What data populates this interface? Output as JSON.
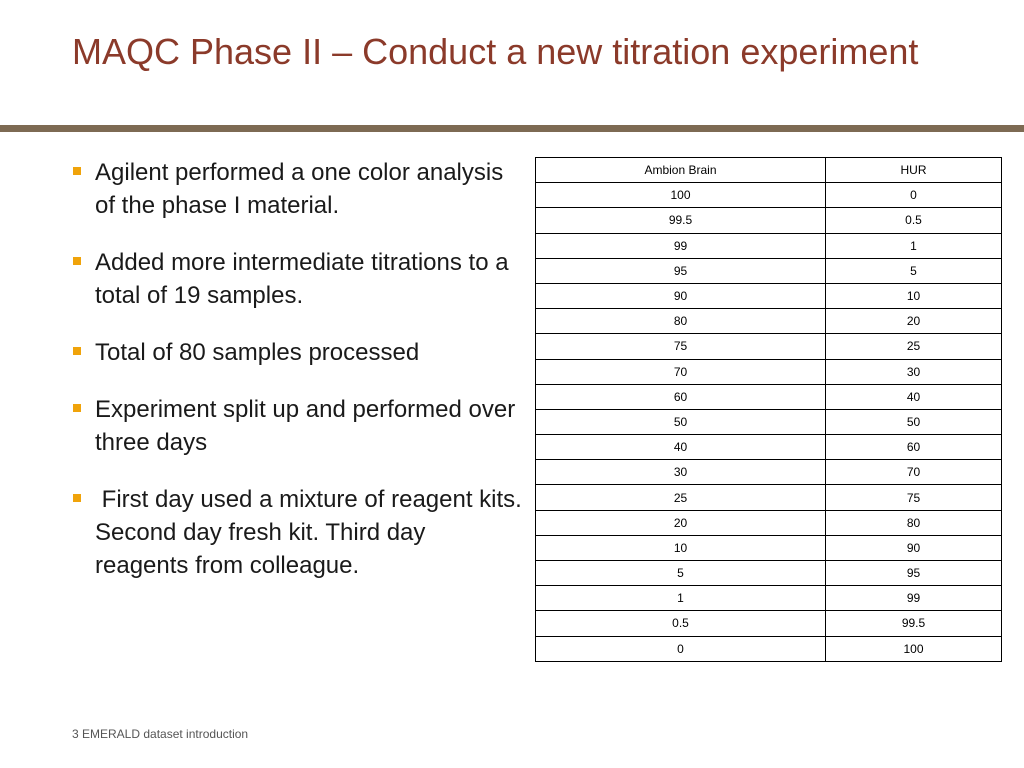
{
  "title": "MAQC Phase II – Conduct a new titration experiment",
  "bullets": [
    "Agilent performed a one color analysis of the phase I material.",
    "Added more intermediate titrations to a total of 19 samples.",
    "Total of 80 samples processed",
    "Experiment split up and performed over three days",
    " First day used a mixture of reagent kits. Second day fresh kit. Third day reagents from colleague."
  ],
  "table": {
    "headers": [
      "Ambion Brain",
      "HUR"
    ],
    "rows": [
      [
        "100",
        "0"
      ],
      [
        "99.5",
        "0.5"
      ],
      [
        "99",
        "1"
      ],
      [
        "95",
        "5"
      ],
      [
        "90",
        "10"
      ],
      [
        "80",
        "20"
      ],
      [
        "75",
        "25"
      ],
      [
        "70",
        "30"
      ],
      [
        "60",
        "40"
      ],
      [
        "50",
        "50"
      ],
      [
        "40",
        "60"
      ],
      [
        "30",
        "70"
      ],
      [
        "25",
        "75"
      ],
      [
        "20",
        "80"
      ],
      [
        "10",
        "90"
      ],
      [
        "5",
        "95"
      ],
      [
        "1",
        "99"
      ],
      [
        "0.5",
        "99.5"
      ],
      [
        "0",
        "100"
      ]
    ]
  },
  "footer": "3 EMERALD dataset introduction",
  "colors": {
    "title": "#8b3a2a",
    "rule": "#7d6a53",
    "bullet": "#f0a30a"
  }
}
